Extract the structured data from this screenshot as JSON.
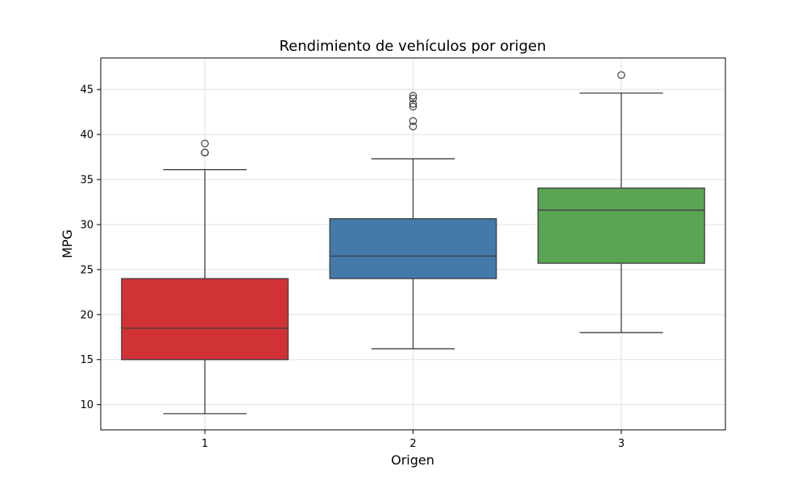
{
  "chart_data": {
    "type": "box",
    "title": "Rendimiento de vehículos por origen",
    "xlabel": "Origen",
    "ylabel": "MPG",
    "categories": [
      "1",
      "2",
      "3"
    ],
    "ylim": [
      7.2,
      48.5
    ],
    "yticks": [
      10,
      15,
      20,
      25,
      30,
      35,
      40,
      45
    ],
    "grid": true,
    "boxes": [
      {
        "category": "1",
        "min": 9.0,
        "q1": 15.0,
        "median": 18.5,
        "q3": 24.0,
        "max": 36.1,
        "outliers": [
          39.0,
          38.0,
          38.0
        ],
        "color": "#d03235"
      },
      {
        "category": "2",
        "min": 16.2,
        "q1": 24.0,
        "median": 26.5,
        "q3": 30.65,
        "max": 37.3,
        "outliers": [
          44.3,
          44.0,
          43.4,
          43.1,
          41.5,
          40.9
        ],
        "color": "#4479aa"
      },
      {
        "category": "3",
        "min": 18.0,
        "q1": 25.7,
        "median": 31.6,
        "q3": 34.05,
        "max": 44.6,
        "outliers": [
          46.6
        ],
        "color": "#5aa454"
      }
    ]
  }
}
